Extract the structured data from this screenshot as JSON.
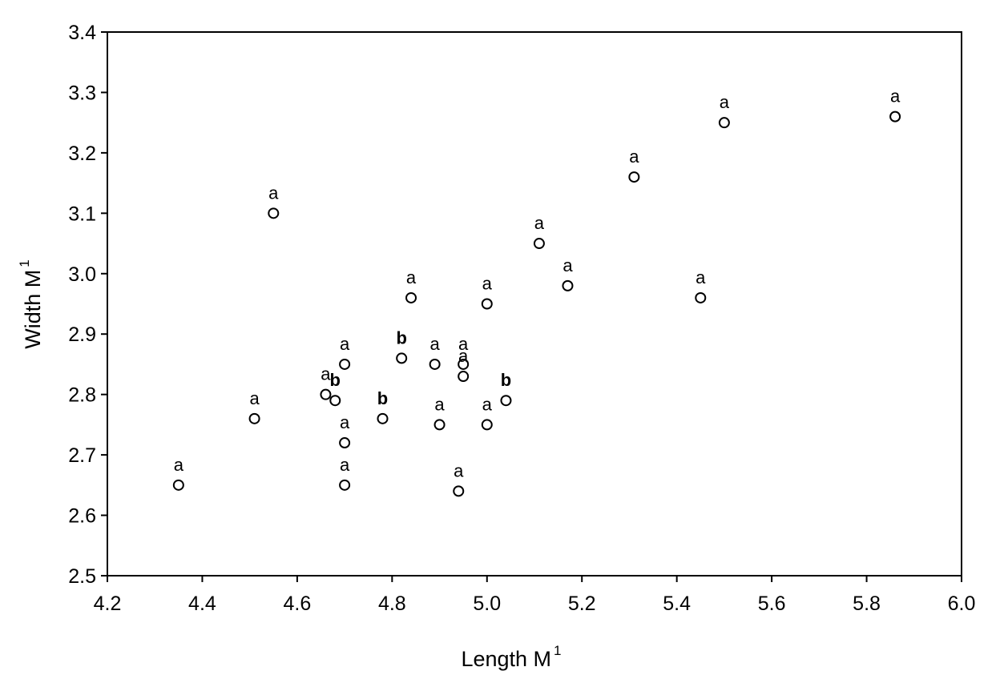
{
  "chart_data": {
    "type": "scatter",
    "xlabel": "Length M",
    "xlabel_sup": "1",
    "ylabel": "Width M",
    "ylabel_sup": "1",
    "xlim": [
      4.2,
      6.0
    ],
    "ylim": [
      2.5,
      3.4
    ],
    "xticks": [
      "4.2",
      "4.4",
      "4.6",
      "4.8",
      "5.0",
      "5.2",
      "5.4",
      "5.6",
      "5.8",
      "6.0"
    ],
    "yticks": [
      "2.5",
      "2.6",
      "2.7",
      "2.8",
      "2.9",
      "3.0",
      "3.1",
      "3.2",
      "3.3",
      "3.4"
    ],
    "grid": false,
    "marker": "open-circle",
    "points": [
      {
        "x": 4.35,
        "y": 2.65,
        "label": "a"
      },
      {
        "x": 4.51,
        "y": 2.76,
        "label": "a"
      },
      {
        "x": 4.55,
        "y": 3.1,
        "label": "a"
      },
      {
        "x": 4.66,
        "y": 2.8,
        "label": "a"
      },
      {
        "x": 4.68,
        "y": 2.79,
        "label": "b"
      },
      {
        "x": 4.7,
        "y": 2.85,
        "label": "a"
      },
      {
        "x": 4.7,
        "y": 2.72,
        "label": "a"
      },
      {
        "x": 4.7,
        "y": 2.65,
        "label": "a"
      },
      {
        "x": 4.78,
        "y": 2.76,
        "label": "b"
      },
      {
        "x": 4.82,
        "y": 2.86,
        "label": "b"
      },
      {
        "x": 4.84,
        "y": 2.96,
        "label": "a"
      },
      {
        "x": 4.89,
        "y": 2.85,
        "label": "a"
      },
      {
        "x": 4.9,
        "y": 2.75,
        "label": "a"
      },
      {
        "x": 4.94,
        "y": 2.64,
        "label": "a"
      },
      {
        "x": 4.95,
        "y": 2.85,
        "label": "a"
      },
      {
        "x": 4.95,
        "y": 2.83,
        "label": "a"
      },
      {
        "x": 5.0,
        "y": 2.95,
        "label": "a"
      },
      {
        "x": 5.0,
        "y": 2.75,
        "label": "a"
      },
      {
        "x": 5.04,
        "y": 2.79,
        "label": "b"
      },
      {
        "x": 5.11,
        "y": 3.05,
        "label": "a"
      },
      {
        "x": 5.17,
        "y": 2.98,
        "label": "a"
      },
      {
        "x": 5.31,
        "y": 3.16,
        "label": "a"
      },
      {
        "x": 5.45,
        "y": 2.96,
        "label": "a"
      },
      {
        "x": 5.5,
        "y": 3.25,
        "label": "a"
      },
      {
        "x": 5.86,
        "y": 3.26,
        "label": "a"
      }
    ]
  }
}
